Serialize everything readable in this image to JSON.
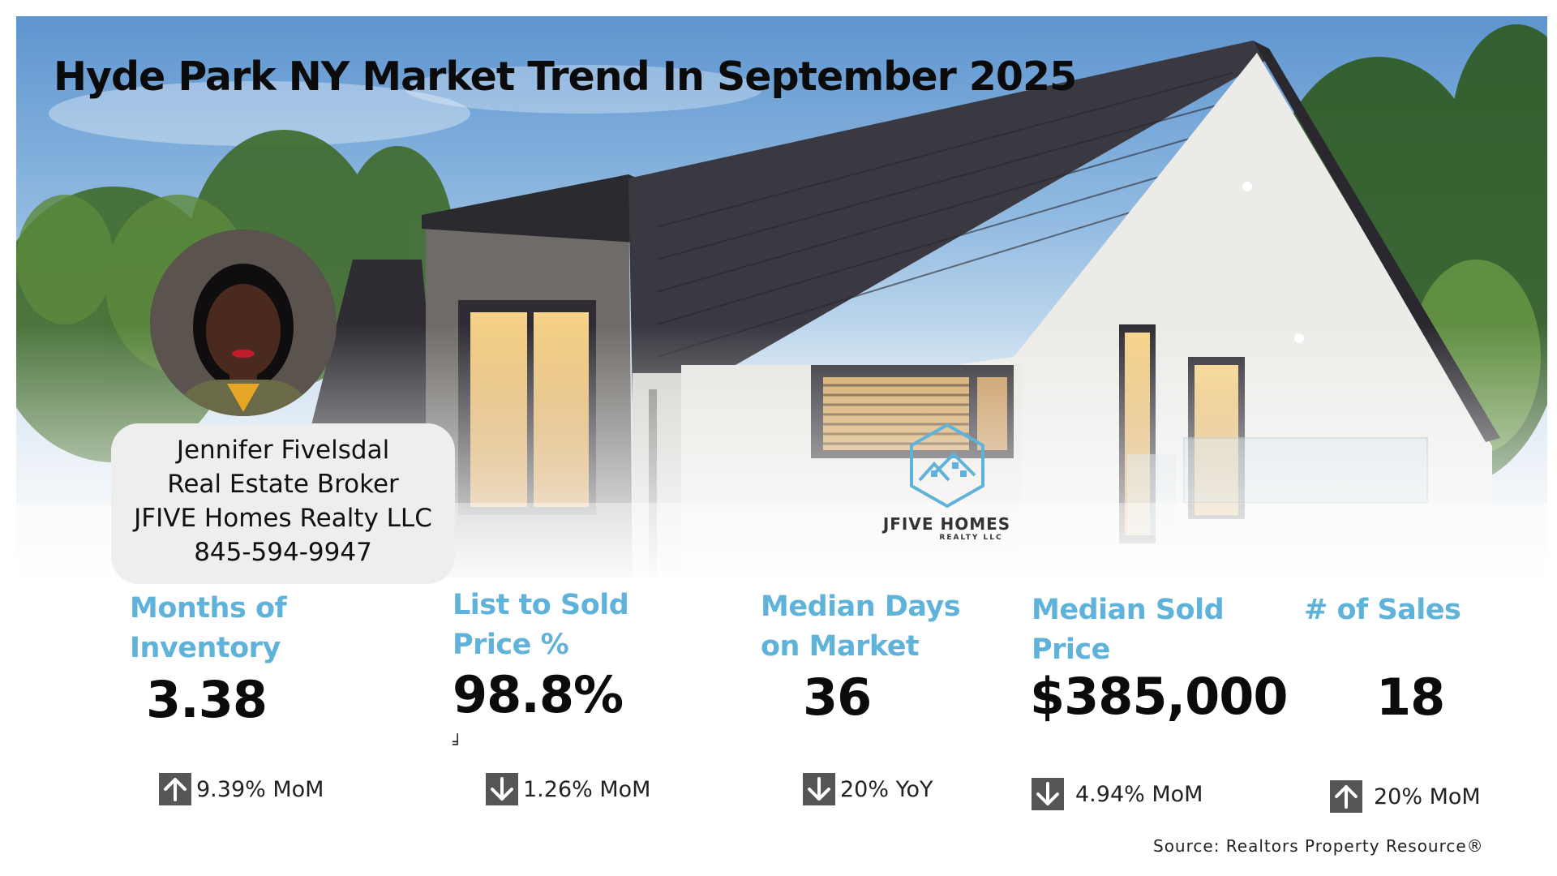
{
  "title": "Hyde Park NY Market Trend In September 2025",
  "agent": {
    "name": "Jennifer Fivelsdal",
    "role": "Real Estate Broker",
    "company": "JFIVE Homes Realty LLC",
    "phone": "845-594-9947"
  },
  "logo": {
    "brand": "JFIVE HOMES",
    "sub": "REALTY LLC"
  },
  "stats": [
    {
      "label_line1": "Months of",
      "label_line2": "Inventory",
      "value": "3.38",
      "change": "9.39% MoM",
      "direction": "up"
    },
    {
      "label_line1": "List to Sold",
      "label_line2": "Price %",
      "value": "98.8%",
      "change": "1.26% MoM",
      "direction": "down"
    },
    {
      "label_line1": "Median Days",
      "label_line2": "on Market",
      "value": "36",
      "change": "20% YoY",
      "direction": "down"
    },
    {
      "label_line1": "Median Sold",
      "label_line2": "Price",
      "value": "$385,000",
      "change": "4.94% MoM",
      "direction": "down"
    },
    {
      "label_line1": "# of Sales",
      "label_line2": "",
      "value": "18",
      "change": "20% MoM",
      "direction": "up"
    }
  ],
  "tick_mark": "╛",
  "source": "Source: Realtors Property Resource®",
  "colors": {
    "accent": "#5fb2da",
    "arrow_bg": "#555555",
    "card_bg": "#eeeeee"
  },
  "icons": {
    "up": "arrow-up-icon",
    "down": "arrow-down-icon"
  }
}
